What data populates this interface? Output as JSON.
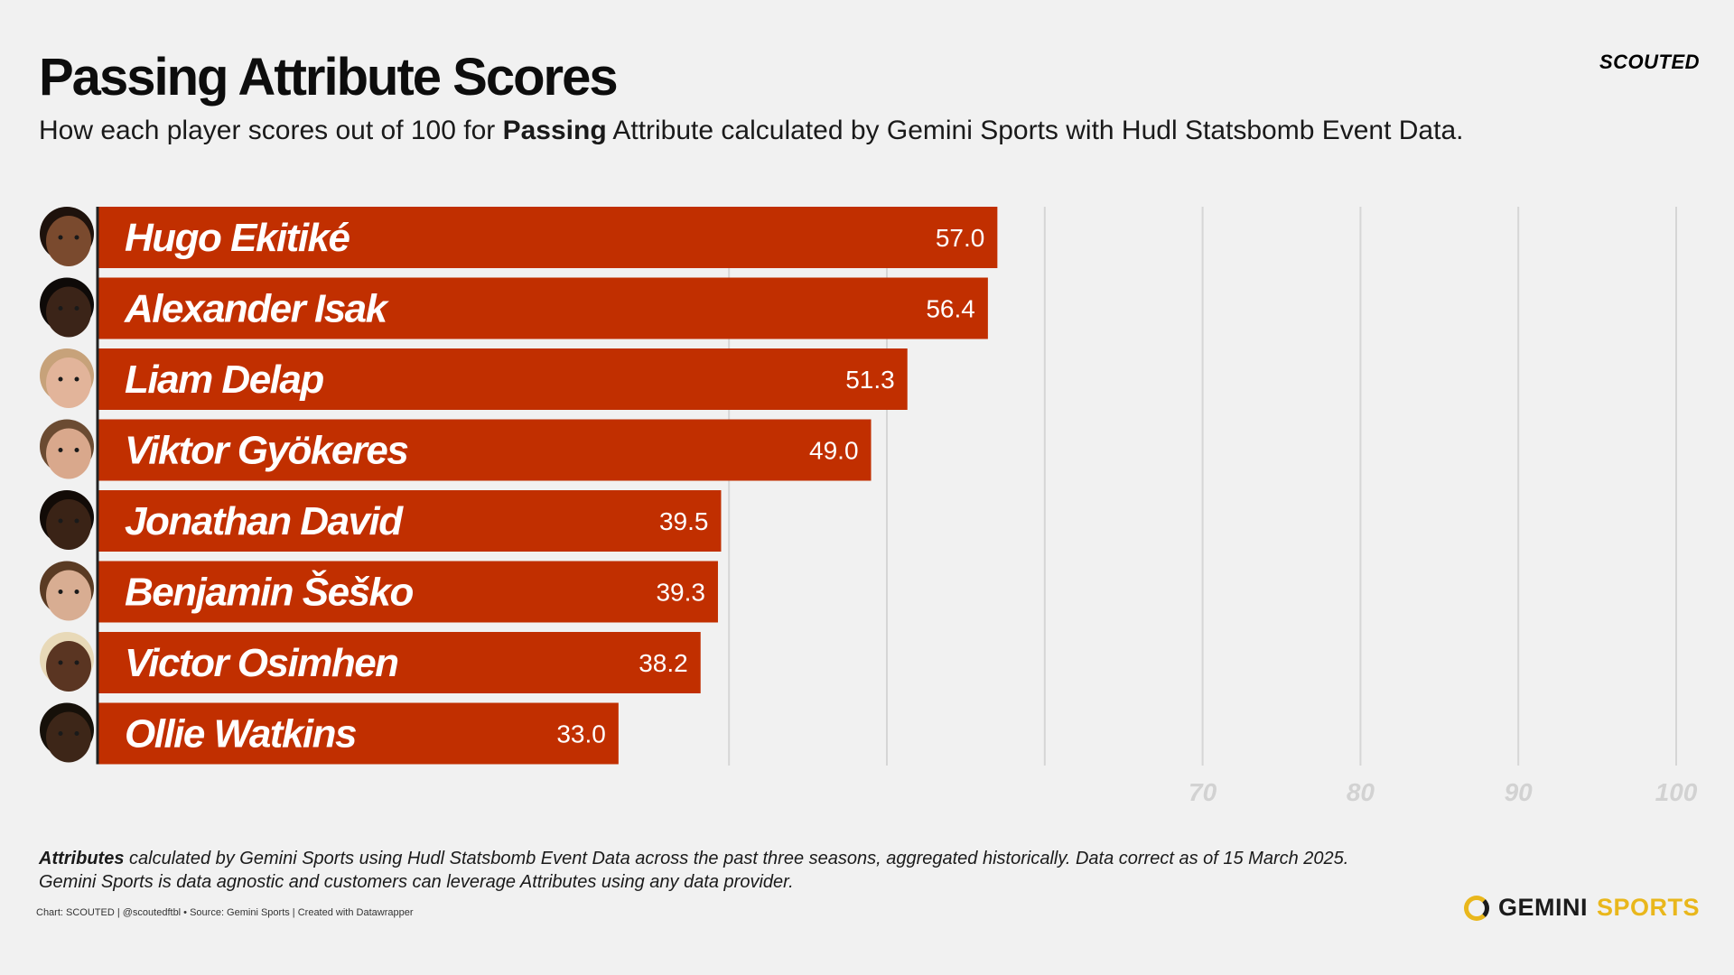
{
  "header": {
    "title": "Passing Attribute Scores",
    "subtitle_pre": "How each player scores out of 100 for ",
    "subtitle_bold": "Passing",
    "subtitle_post": " Attribute calculated by Gemini Sports with Hudl Statsbomb Event Data.",
    "brand": "SCOUTED"
  },
  "chart_data": {
    "type": "bar",
    "orientation": "horizontal",
    "title": "Passing Attribute Scores",
    "categories": [
      "Hugo Ekitiké",
      "Alexander Isak",
      "Liam Delap",
      "Viktor  Gyökeres",
      "Jonathan David",
      "Benjamin Šeško",
      "Victor Osimhen",
      "Ollie Watkins"
    ],
    "values": [
      57.0,
      56.4,
      51.3,
      49.0,
      39.5,
      39.3,
      38.2,
      33.0
    ],
    "value_labels": [
      "57.0",
      "56.4",
      "51.3",
      "49.0",
      "39.5",
      "39.3",
      "38.2",
      "33.0"
    ],
    "xlim": [
      0,
      100
    ],
    "x_tick_values": [
      40,
      50,
      60,
      70,
      80,
      90,
      100
    ],
    "x_tick_labels": [
      "70",
      "80",
      "90",
      "100"
    ],
    "x_tick_label_values": [
      70,
      80,
      90,
      100
    ],
    "bar_color": "#c12f00",
    "grid": true
  },
  "footer": {
    "note_bold": "Attributes",
    "note_line1": " calculated by Gemini Sports using Hudl Statsbomb Event Data across the past three seasons, aggregated historically. Data correct as of 15 March 2025.",
    "note_line2": "Gemini Sports is data agnostic and customers can leverage Attributes using any data provider.",
    "credit": "Chart: SCOUTED | @scoutedftbl • Source: Gemini Sports | Created with Datawrapper",
    "logo_word1": "GEMINI",
    "logo_word2": "SPORTS"
  }
}
